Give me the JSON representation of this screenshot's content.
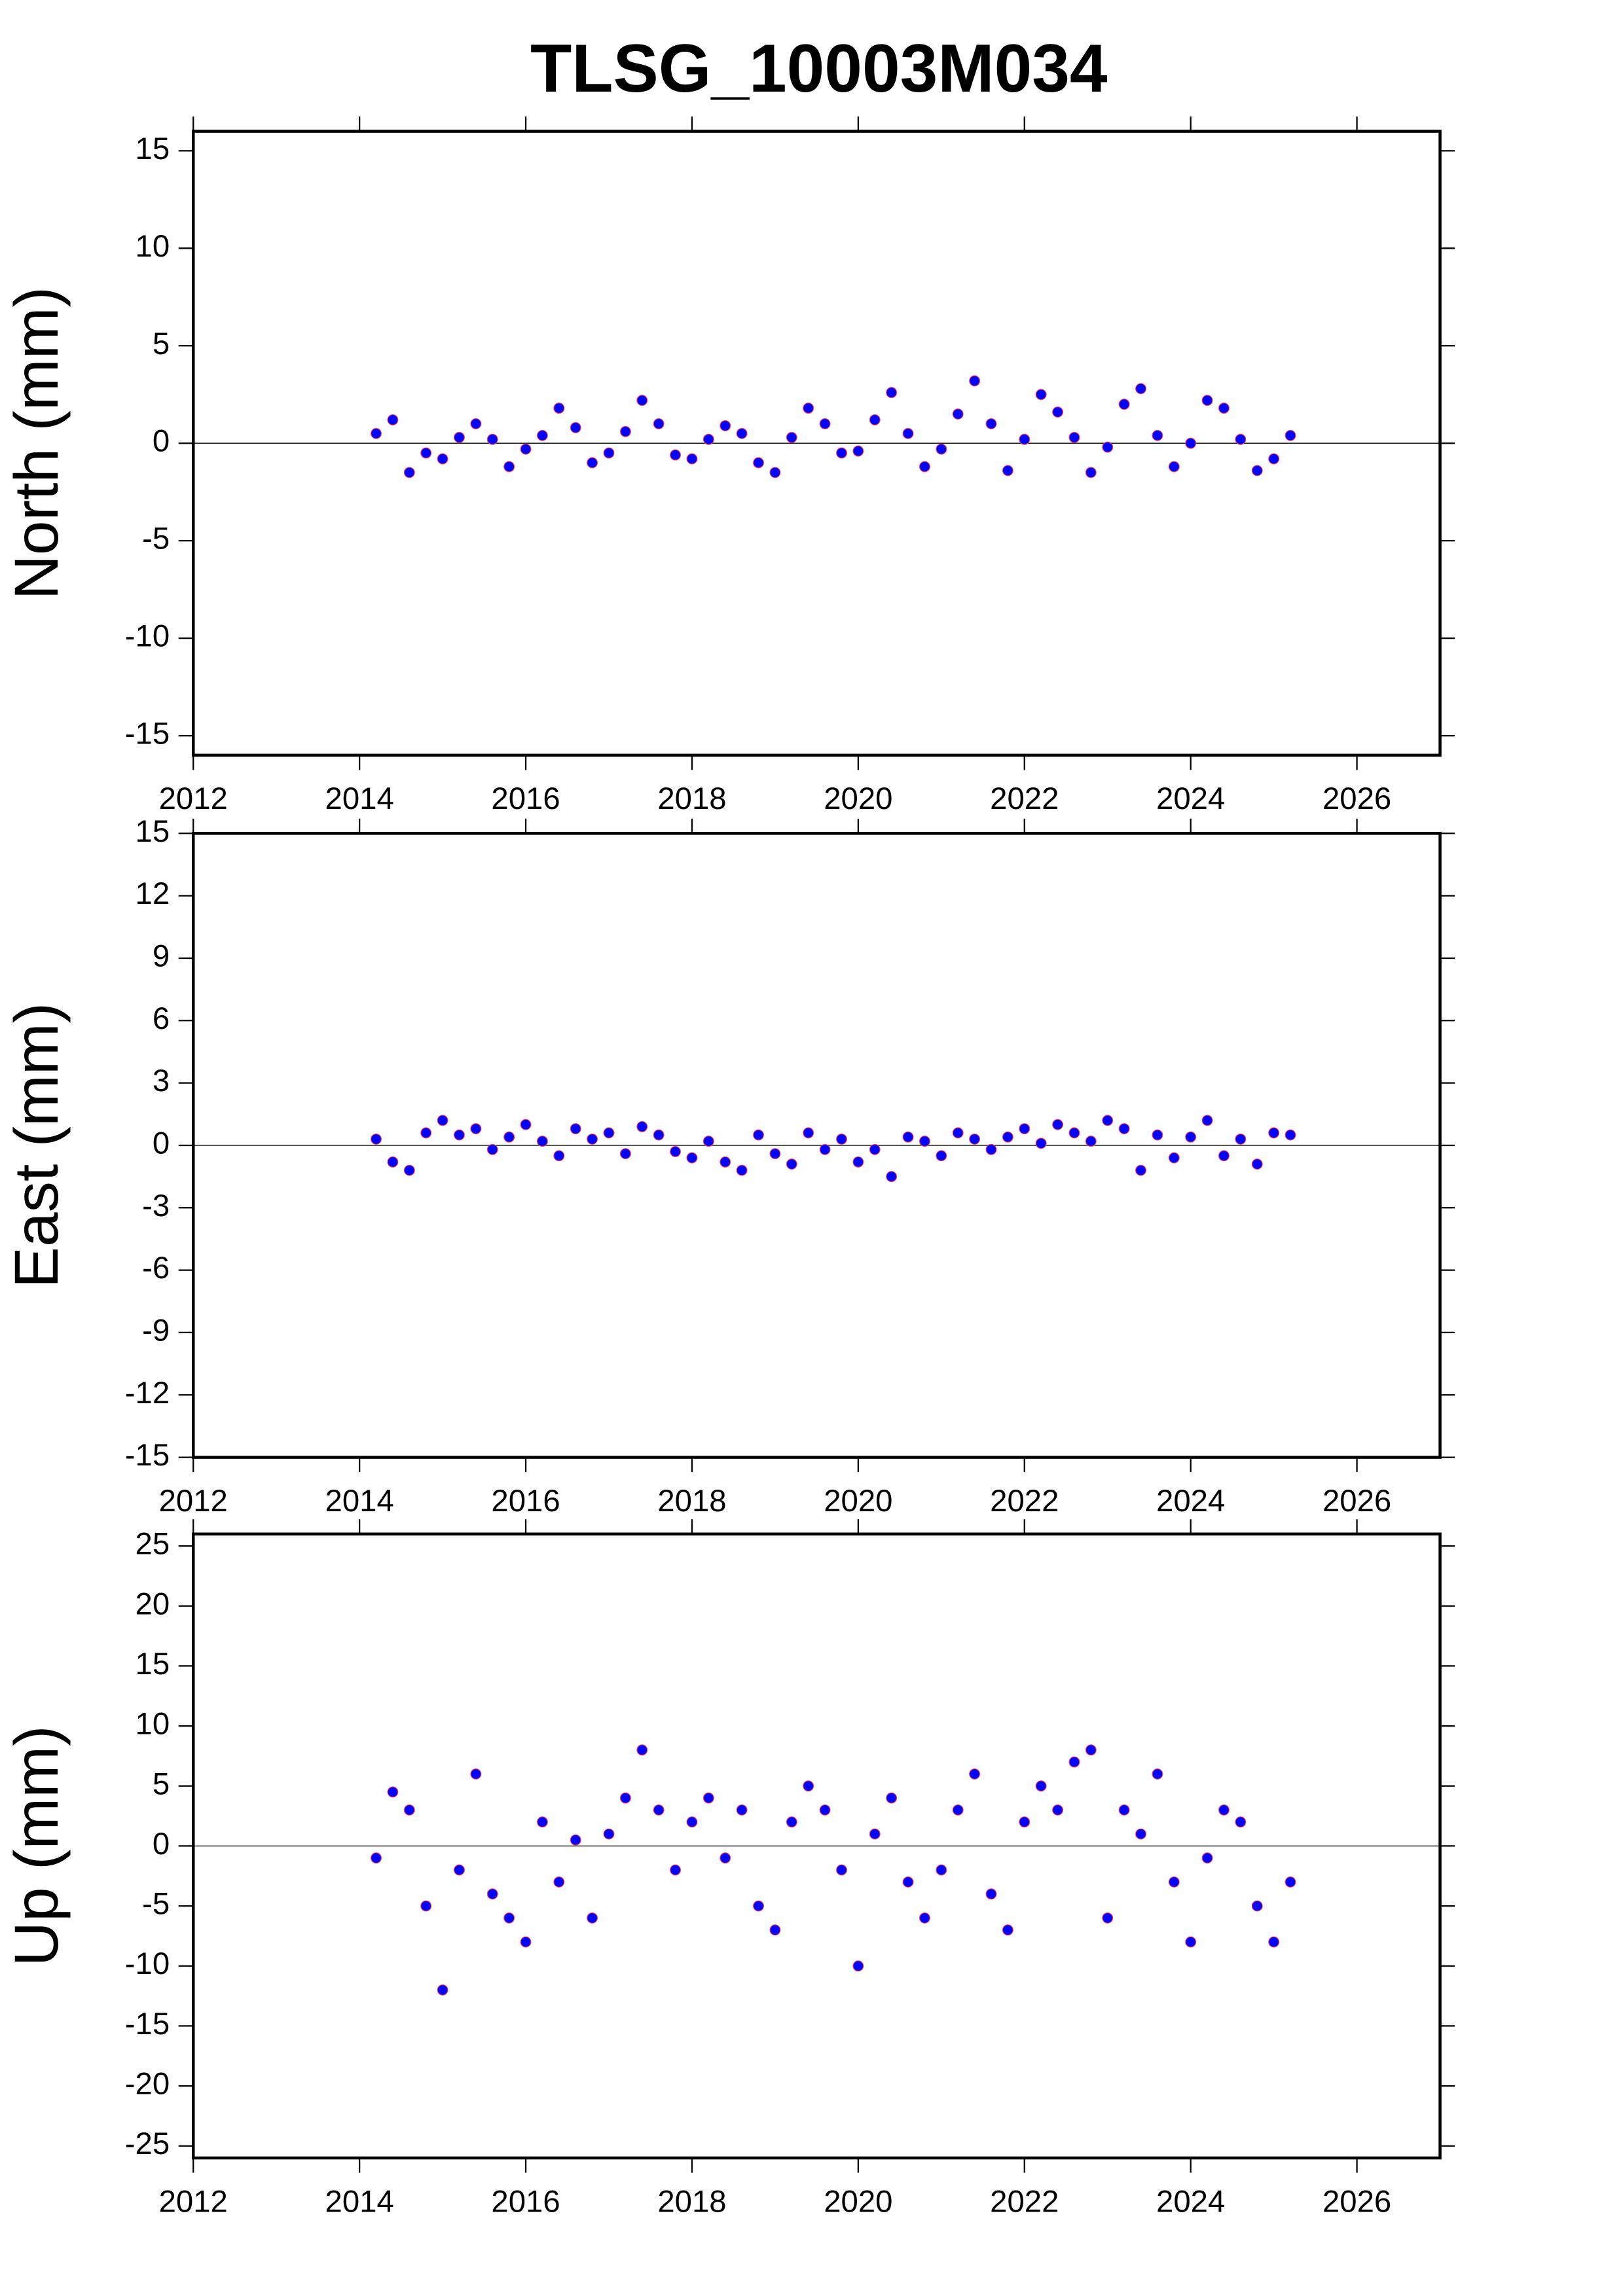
{
  "title": "TLSG_10003M034",
  "chart_data": [
    {
      "type": "scatter",
      "ylabel": "North (mm)",
      "color": "#0000ff",
      "hline": 0,
      "xlim": [
        2012,
        2027
      ],
      "xticks": [
        2012,
        2014,
        2016,
        2018,
        2020,
        2022,
        2024,
        2026
      ],
      "ylim": [
        -16,
        16
      ],
      "yticks": [
        -15,
        -10,
        -5,
        0,
        5,
        10,
        15
      ],
      "x": [
        2014.2,
        2014.4,
        2014.6,
        2014.8,
        2015.0,
        2015.2,
        2015.4,
        2015.6,
        2015.8,
        2016.0,
        2016.2,
        2016.4,
        2016.6,
        2016.8,
        2017.0,
        2017.2,
        2017.4,
        2017.6,
        2017.8,
        2018.0,
        2018.2,
        2018.4,
        2018.6,
        2018.8,
        2019.0,
        2019.2,
        2019.4,
        2019.6,
        2019.8,
        2020.0,
        2020.2,
        2020.4,
        2020.6,
        2020.8,
        2021.0,
        2021.2,
        2021.4,
        2021.6,
        2021.8,
        2022.0,
        2022.2,
        2022.4,
        2022.6,
        2022.8,
        2023.0,
        2023.2,
        2023.4,
        2023.6,
        2023.8,
        2024.0,
        2024.2,
        2024.4,
        2024.6,
        2024.8,
        2025.0,
        2025.2
      ],
      "values": [
        0.5,
        1.2,
        -1.5,
        -0.5,
        -0.8,
        0.3,
        1.0,
        0.2,
        -1.2,
        -0.3,
        0.4,
        1.8,
        0.8,
        -1.0,
        -0.5,
        0.6,
        2.2,
        1.0,
        -0.6,
        -0.8,
        0.2,
        0.9,
        0.5,
        -1.0,
        -1.5,
        0.3,
        1.8,
        1.0,
        -0.5,
        -0.4,
        1.2,
        2.6,
        0.5,
        -1.2,
        -0.3,
        1.5,
        3.2,
        1.0,
        -1.4,
        0.2,
        2.5,
        1.6,
        0.3,
        -1.5,
        -0.2,
        2.0,
        2.8,
        0.4,
        -1.2,
        0.0,
        2.2,
        1.8,
        0.2,
        -1.4,
        -0.8,
        0.4
      ]
    },
    {
      "type": "scatter",
      "ylabel": "East (mm)",
      "color": "#0000ff",
      "hline": 0,
      "xlim": [
        2012,
        2027
      ],
      "xticks": [
        2012,
        2014,
        2016,
        2018,
        2020,
        2022,
        2024,
        2026
      ],
      "ylim": [
        -15,
        15
      ],
      "yticks": [
        -15,
        -12,
        -9,
        -6,
        -3,
        0,
        3,
        6,
        9,
        12,
        15
      ],
      "x": [
        2014.2,
        2014.4,
        2014.6,
        2014.8,
        2015.0,
        2015.2,
        2015.4,
        2015.6,
        2015.8,
        2016.0,
        2016.2,
        2016.4,
        2016.6,
        2016.8,
        2017.0,
        2017.2,
        2017.4,
        2017.6,
        2017.8,
        2018.0,
        2018.2,
        2018.4,
        2018.6,
        2018.8,
        2019.0,
        2019.2,
        2019.4,
        2019.6,
        2019.8,
        2020.0,
        2020.2,
        2020.4,
        2020.6,
        2020.8,
        2021.0,
        2021.2,
        2021.4,
        2021.6,
        2021.8,
        2022.0,
        2022.2,
        2022.4,
        2022.6,
        2022.8,
        2023.0,
        2023.2,
        2023.4,
        2023.6,
        2023.8,
        2024.0,
        2024.2,
        2024.4,
        2024.6,
        2024.8,
        2025.0,
        2025.2
      ],
      "values": [
        0.3,
        -0.8,
        -1.2,
        0.6,
        1.2,
        0.5,
        0.8,
        -0.2,
        0.4,
        1.0,
        0.2,
        -0.5,
        0.8,
        0.3,
        0.6,
        -0.4,
        0.9,
        0.5,
        -0.3,
        -0.6,
        0.2,
        -0.8,
        -1.2,
        0.5,
        -0.4,
        -0.9,
        0.6,
        -0.2,
        0.3,
        -0.8,
        -0.2,
        -1.5,
        0.4,
        0.2,
        -0.5,
        0.6,
        0.3,
        -0.2,
        0.4,
        0.8,
        0.1,
        1.0,
        0.6,
        0.2,
        1.2,
        0.8,
        -1.2,
        0.5,
        -0.6,
        0.4,
        1.2,
        -0.5,
        0.3,
        -0.9,
        0.6,
        0.5
      ]
    },
    {
      "type": "scatter",
      "ylabel": "Up (mm)",
      "color": "#0000ff",
      "hline": 0,
      "xlim": [
        2012,
        2027
      ],
      "xticks": [
        2012,
        2014,
        2016,
        2018,
        2020,
        2022,
        2024,
        2026
      ],
      "ylim": [
        -26,
        26
      ],
      "yticks": [
        -25,
        -20,
        -15,
        -10,
        -5,
        0,
        5,
        10,
        15,
        20,
        25
      ],
      "x": [
        2014.2,
        2014.4,
        2014.6,
        2014.8,
        2015.0,
        2015.2,
        2015.4,
        2015.6,
        2015.8,
        2016.0,
        2016.2,
        2016.4,
        2016.6,
        2016.8,
        2017.0,
        2017.2,
        2017.4,
        2017.6,
        2017.8,
        2018.0,
        2018.2,
        2018.4,
        2018.6,
        2018.8,
        2019.0,
        2019.2,
        2019.4,
        2019.6,
        2019.8,
        2020.0,
        2020.2,
        2020.4,
        2020.6,
        2020.8,
        2021.0,
        2021.2,
        2021.4,
        2021.6,
        2021.8,
        2022.0,
        2022.2,
        2022.4,
        2022.6,
        2022.8,
        2023.0,
        2023.2,
        2023.4,
        2023.6,
        2023.8,
        2024.0,
        2024.2,
        2024.4,
        2024.6,
        2024.8,
        2025.0,
        2025.2
      ],
      "values": [
        -1.0,
        4.5,
        3.0,
        -5.0,
        -12.0,
        -2.0,
        6.0,
        -4.0,
        -6.0,
        -8.0,
        2.0,
        -3.0,
        0.5,
        -6.0,
        1.0,
        4.0,
        8.0,
        3.0,
        -2.0,
        2.0,
        4.0,
        -1.0,
        3.0,
        -5.0,
        -7.0,
        2.0,
        5.0,
        3.0,
        -2.0,
        -10.0,
        1.0,
        4.0,
        -3.0,
        -6.0,
        -2.0,
        3.0,
        6.0,
        -4.0,
        -7.0,
        2.0,
        5.0,
        3.0,
        7.0,
        8.0,
        -6.0,
        3.0,
        1.0,
        6.0,
        -3.0,
        -8.0,
        -1.0,
        3.0,
        2.0,
        -5.0,
        -8.0,
        -3.0
      ]
    }
  ]
}
